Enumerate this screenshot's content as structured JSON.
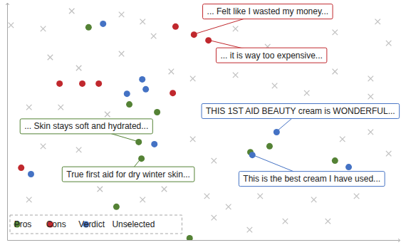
{
  "chart_data": {
    "type": "scatter",
    "xlim": [
      0,
      100
    ],
    "ylim": [
      0,
      100
    ],
    "tick_labels": false,
    "grid": false,
    "legend": "bottom-left",
    "series": [
      {
        "name": "Pros",
        "color": "#548235",
        "marker": "circle",
        "x": [
          20.7,
          31.1,
          38.2,
          33.5,
          34.2,
          62.0,
          66.9,
          83.6,
          27.8,
          46.5
        ],
        "values": [
          90.1,
          57.5,
          54.2,
          41.6,
          34.6,
          37.3,
          39.8,
          33.7,
          14.2,
          0.9
        ]
      },
      {
        "name": "Cons",
        "color": "#c0282d",
        "marker": "circle",
        "x": [
          42.9,
          47.6,
          51.3,
          13.3,
          19.1,
          23.3,
          42.2,
          3.5
        ],
        "values": [
          90.4,
          87.0,
          84.6,
          66.3,
          66.3,
          66.3,
          62.3,
          30.7
        ]
      },
      {
        "name": "Verdict",
        "color": "#4472c4",
        "marker": "circle",
        "x": [
          24.4,
          34.4,
          30.5,
          35.3,
          37.5,
          68.7,
          62.5,
          87.1,
          6.0
        ],
        "values": [
          91.6,
          68.1,
          62.0,
          63.9,
          40.7,
          45.8,
          36.1,
          31.0,
          28.0
        ]
      },
      {
        "name": "Unselected",
        "color": "#bfbfbf",
        "marker": "x",
        "x": [
          0.9,
          9.1,
          16.4,
          29.1,
          34.5,
          37.3,
          58.2,
          66.4,
          83.6,
          94.5,
          97.3,
          70.9,
          83.6,
          92.7,
          29.1,
          10.9,
          18.2,
          5.5,
          13.6,
          25.5,
          47.3,
          58.2,
          68.2,
          76.4,
          92.7,
          18.2,
          9.1,
          52.7,
          40.0,
          50.9,
          56.4,
          64.5,
          78.2,
          89.1,
          97.3,
          92.7,
          70.9,
          61.8,
          5.5,
          52.7,
          81.8,
          47.3,
          41.8,
          85.5,
          23.6,
          34.5
        ],
        "values": [
          91.0,
          89.5,
          97.0,
          95.5,
          92.5,
          86.4,
          89.5,
          81.9,
          88.0,
          92.5,
          83.4,
          78.9,
          71.4,
          68.4,
          78.9,
          77.4,
          72.9,
          56.3,
          56.3,
          53.3,
          68.4,
          69.9,
          65.4,
          62.3,
          60.8,
          38.3,
          39.8,
          33.7,
          21.7,
          18.7,
          14.2,
          18.7,
          17.2,
          18.7,
          36.7,
          45.8,
          8.1,
          4.5,
          17.2,
          9.6,
          8.1,
          42.8,
          71.4,
          42.8,
          21.7,
          17.2
        ]
      }
    ],
    "annotations": [
      {
        "text": "... Felt like I wasted my money...",
        "series": "Cons",
        "x": 47.6,
        "y": 87.0
      },
      {
        "text": "... it is way too expensive...",
        "series": "Cons",
        "x": 51.3,
        "y": 84.6
      },
      {
        "text": "THIS 1ST AID BEAUTY cream is WONDERFUL...",
        "series": "Verdict",
        "x": 68.7,
        "y": 45.8
      },
      {
        "text": "... Skin stays soft and hydrated...",
        "series": "Pros",
        "x": 33.5,
        "y": 41.6
      },
      {
        "text": "True first aid for dry winter skin...",
        "series": "Pros",
        "x": 34.2,
        "y": 34.6
      },
      {
        "text": "This is the best cream I have used...",
        "series": "Verdict",
        "x": 62.5,
        "y": 36.1
      }
    ]
  }
}
